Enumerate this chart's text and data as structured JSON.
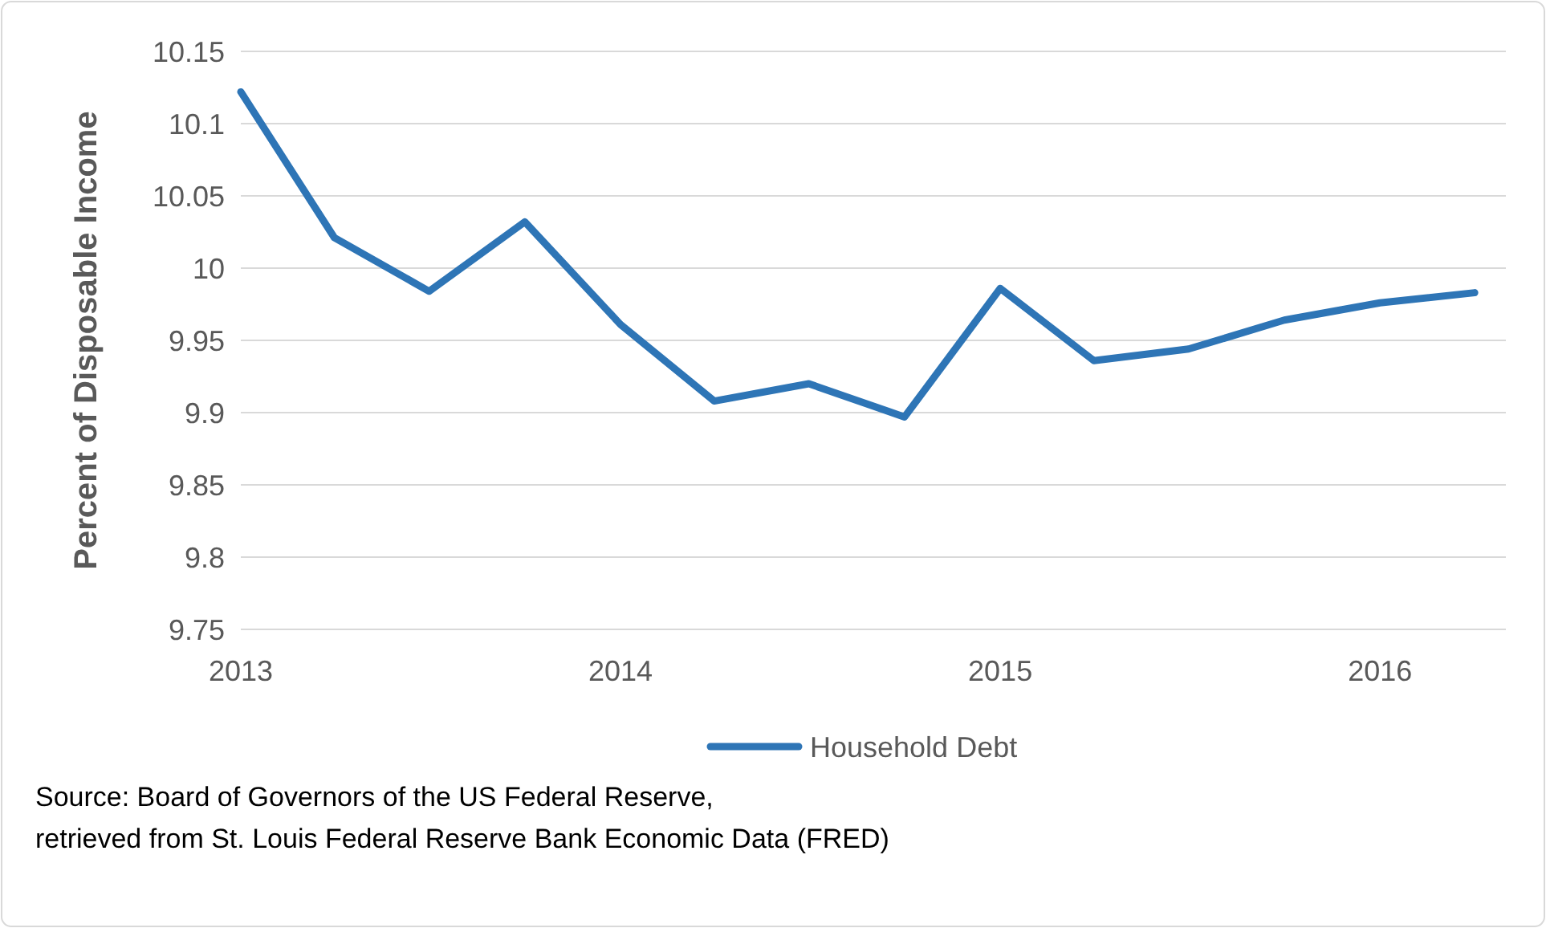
{
  "chart_data": {
    "type": "line",
    "ylabel": "Percent of Disposable Income",
    "x": [
      "2013-01",
      "2013-04",
      "2013-07",
      "2013-10",
      "2014-01",
      "2014-04",
      "2014-07",
      "2014-10",
      "2015-01",
      "2015-04",
      "2015-07",
      "2015-10",
      "2016-01",
      "2016-04"
    ],
    "series": [
      {
        "name": "Household Debt",
        "color": "#2e75b6",
        "values": [
          10.122,
          10.021,
          9.984,
          10.032,
          9.961,
          9.908,
          9.92,
          9.897,
          9.986,
          9.936,
          9.944,
          9.964,
          9.976,
          9.983
        ]
      }
    ],
    "xlim": [
      "2013-01",
      "2016-05"
    ],
    "xticks": [
      {
        "value": "2013",
        "label": "2013"
      },
      {
        "value": "2014",
        "label": "2014"
      },
      {
        "value": "2015",
        "label": "2015"
      },
      {
        "value": "2016",
        "label": "2016"
      }
    ],
    "ylim": [
      9.75,
      10.15
    ],
    "yticks": [
      9.75,
      9.8,
      9.85,
      9.9,
      9.95,
      10,
      10.05,
      10.1,
      10.15
    ],
    "grid": "y",
    "legend": "bottom",
    "marker": "none",
    "line_style": "solid",
    "annotations": [
      "Source: Board of Governors of the US Federal Reserve,",
      "retrieved from St. Louis Federal Reserve Bank Economic Data (FRED)"
    ]
  }
}
